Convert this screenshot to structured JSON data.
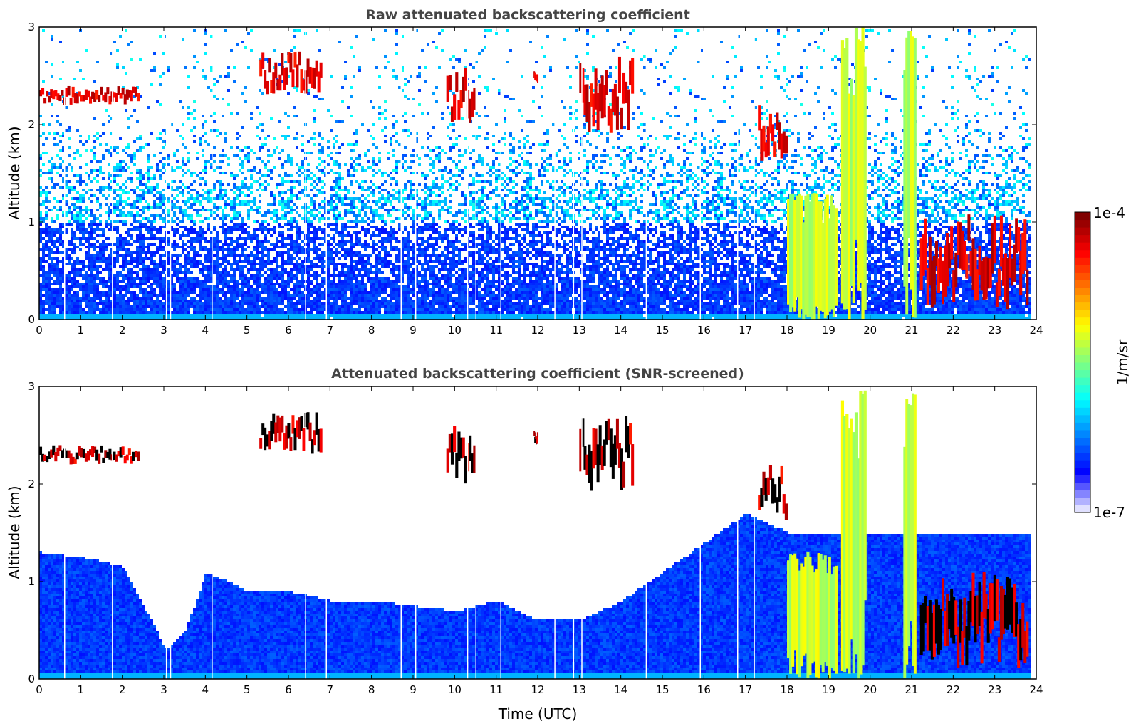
{
  "chart_data": [
    {
      "type": "heatmap",
      "title": "Raw attenuated backscattering coefficient",
      "xlabel": "",
      "ylabel": "Altitude (km)",
      "xlim": [
        0,
        24
      ],
      "ylim": [
        0,
        3
      ],
      "x_ticks": [
        "0",
        "1",
        "2",
        "3",
        "4",
        "5",
        "6",
        "7",
        "8",
        "9",
        "10",
        "11",
        "12",
        "13",
        "14",
        "15",
        "16",
        "17",
        "18",
        "19",
        "20",
        "21",
        "22",
        "23",
        "24"
      ],
      "y_ticks": [
        "0",
        "1",
        "2",
        "3"
      ],
      "layers": [
        {
          "x": [
            0,
            2.4
          ],
          "y": [
            2.2,
            2.4
          ],
          "level": "high"
        },
        {
          "x": [
            5.3,
            6.8
          ],
          "y": [
            2.3,
            2.75
          ],
          "level": "high"
        },
        {
          "x": [
            9.8,
            10.5
          ],
          "y": [
            2.0,
            2.6
          ],
          "level": "high"
        },
        {
          "x": [
            11.9,
            12.0
          ],
          "y": [
            2.4,
            2.55
          ],
          "level": "high"
        },
        {
          "x": [
            13.0,
            14.3
          ],
          "y": [
            1.9,
            2.7
          ],
          "level": "high"
        },
        {
          "x": [
            17.3,
            18.0
          ],
          "y": [
            1.6,
            2.2
          ],
          "level": "high"
        },
        {
          "x": [
            18.0,
            19.2
          ],
          "y": [
            0.0,
            1.3
          ],
          "level": "medium"
        },
        {
          "x": [
            19.3,
            19.9
          ],
          "y": [
            0.0,
            3.0
          ],
          "level": "medium"
        },
        {
          "x": [
            20.8,
            21.1
          ],
          "y": [
            0.0,
            3.0
          ],
          "level": "medium"
        },
        {
          "x": [
            21.2,
            23.8
          ],
          "y": [
            0.1,
            1.1
          ],
          "level": "high"
        }
      ]
    },
    {
      "type": "heatmap",
      "title": "Attenuated backscattering coefficient (SNR-screened)",
      "xlabel": "Time (UTC)",
      "ylabel": "Altitude (km)",
      "xlim": [
        0,
        24
      ],
      "ylim": [
        0,
        3
      ],
      "x_ticks": [
        "0",
        "1",
        "2",
        "3",
        "4",
        "5",
        "6",
        "7",
        "8",
        "9",
        "10",
        "11",
        "12",
        "13",
        "14",
        "15",
        "16",
        "17",
        "18",
        "19",
        "20",
        "21",
        "22",
        "23",
        "24"
      ],
      "y_ticks": [
        "0",
        "1",
        "2",
        "3"
      ],
      "screened_boundary_hours": [
        0,
        1,
        2,
        2.8,
        3.0,
        3.5,
        4.0,
        5.0,
        6.0,
        7.0,
        8.0,
        9.0,
        10.0,
        11.0,
        12.0,
        13.0,
        14.0,
        15.0,
        16.0,
        17.0,
        18.0,
        19.0
      ],
      "screened_boundary_km": [
        1.3,
        1.25,
        1.15,
        0.5,
        0.3,
        0.5,
        1.1,
        0.9,
        0.9,
        0.8,
        0.8,
        0.75,
        0.7,
        0.8,
        0.6,
        0.6,
        0.8,
        1.1,
        1.4,
        1.7,
        1.5,
        1.5
      ]
    }
  ],
  "colorbar": {
    "label": "1/m/sr",
    "max_label": "1e-4",
    "min_label": "1e-7",
    "colormap": [
      "#e0e0ff",
      "#0000ff",
      "#0080ff",
      "#00ffff",
      "#80ff80",
      "#ffff00",
      "#ff8000",
      "#ff0000",
      "#800000"
    ]
  }
}
